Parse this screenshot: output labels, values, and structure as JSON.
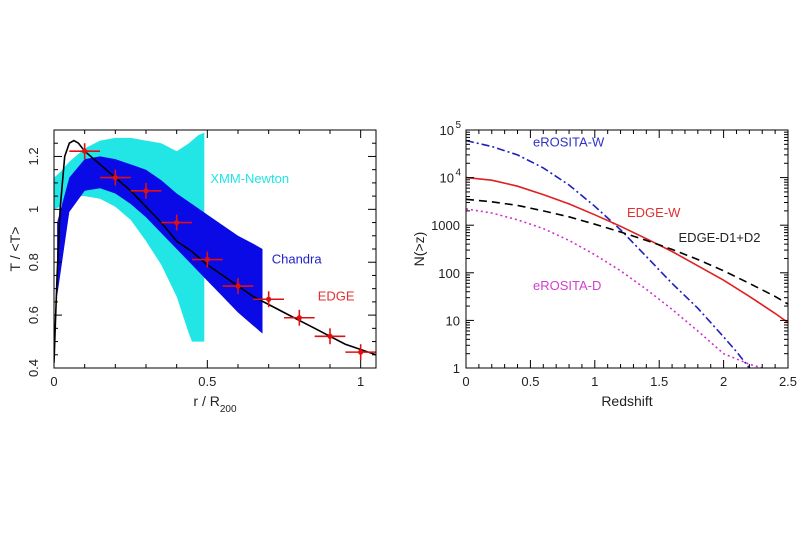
{
  "chart_data": [
    {
      "type": "scatter",
      "xlabel": "r / R",
      "xlabel_sub": "200",
      "ylabel": "T / <T>",
      "xlim": [
        0,
        1.05
      ],
      "ylim": [
        0.4,
        1.3
      ],
      "x_ticks": [
        0,
        0.5,
        1
      ],
      "y_ticks": [
        0.4,
        0.6,
        0.8,
        1,
        1.2
      ],
      "x_tick_labels": [
        "0",
        "0.5",
        "1"
      ],
      "y_tick_labels": [
        "0.4",
        "0.6",
        "0.8",
        "1",
        "1.2"
      ],
      "annotations": [
        {
          "text": "XMM-Newton",
          "color": "#22e5e5",
          "x": 0.51,
          "y": 1.1
        },
        {
          "text": "Chandra",
          "color": "#2222cc",
          "x": 0.71,
          "y": 0.795
        },
        {
          "text": "EDGE",
          "color": "#e03030",
          "x": 0.86,
          "y": 0.655
        }
      ],
      "series": [
        {
          "kind": "band",
          "color": "#22e5e5",
          "x": [
            0,
            0.02,
            0.05,
            0.1,
            0.15,
            0.2,
            0.25,
            0.3,
            0.35,
            0.4,
            0.44,
            0.45,
            0.47,
            0.49
          ],
          "upper": [
            1.12,
            1.14,
            1.18,
            1.23,
            1.26,
            1.27,
            1.27,
            1.26,
            1.25,
            1.22,
            1.25,
            1.26,
            1.28,
            1.29
          ],
          "lower": [
            1.0,
            1.01,
            1.05,
            1.05,
            1.04,
            1.01,
            0.96,
            0.88,
            0.79,
            0.67,
            0.53,
            0.5,
            0.5,
            0.5
          ]
        },
        {
          "kind": "band",
          "color": "#0a0ae6",
          "x": [
            0.01,
            0.05,
            0.1,
            0.15,
            0.2,
            0.25,
            0.3,
            0.35,
            0.4,
            0.45,
            0.5,
            0.55,
            0.6,
            0.65,
            0.68
          ],
          "upper": [
            0.95,
            1.12,
            1.19,
            1.2,
            1.19,
            1.17,
            1.15,
            1.11,
            1.06,
            1.02,
            0.98,
            0.94,
            0.9,
            0.87,
            0.85
          ],
          "lower": [
            0.67,
            0.99,
            1.07,
            1.08,
            1.06,
            1.02,
            0.97,
            0.91,
            0.85,
            0.79,
            0.73,
            0.67,
            0.61,
            0.56,
            0.53
          ]
        },
        {
          "kind": "line",
          "color": "#000000",
          "x": [
            0.0,
            0.01,
            0.02,
            0.035,
            0.05,
            0.065,
            0.08,
            0.1,
            0.15,
            0.2,
            0.25,
            0.3,
            0.35,
            0.4,
            0.45,
            0.5,
            0.55,
            0.6,
            0.65,
            0.7,
            0.75,
            0.8,
            0.85,
            0.9,
            0.95,
            1.0,
            1.05
          ],
          "y": [
            0.42,
            0.75,
            1.0,
            1.2,
            1.25,
            1.26,
            1.25,
            1.22,
            1.17,
            1.12,
            1.07,
            1.01,
            0.95,
            0.88,
            0.84,
            0.79,
            0.75,
            0.71,
            0.67,
            0.64,
            0.61,
            0.58,
            0.55,
            0.52,
            0.49,
            0.47,
            0.45
          ]
        },
        {
          "kind": "points",
          "color": "#e01010",
          "x": [
            0.1,
            0.2,
            0.3,
            0.4,
            0.5,
            0.6,
            0.7,
            0.8,
            0.9,
            1.0
          ],
          "y": [
            1.22,
            1.12,
            1.07,
            0.95,
            0.81,
            0.71,
            0.66,
            0.59,
            0.52,
            0.46
          ],
          "xerr": [
            0.05,
            0.05,
            0.05,
            0.05,
            0.05,
            0.05,
            0.05,
            0.05,
            0.05,
            0.05
          ],
          "yerr": [
            0.03,
            0.03,
            0.03,
            0.03,
            0.03,
            0.03,
            0.03,
            0.03,
            0.03,
            0.03
          ]
        }
      ]
    },
    {
      "type": "line",
      "xlabel": "Redshift",
      "ylabel": "N(>z)",
      "xlim": [
        0,
        2.5
      ],
      "ylim": [
        1,
        100000
      ],
      "y_scale": "log",
      "x_ticks": [
        0,
        0.5,
        1,
        1.5,
        2,
        2.5
      ],
      "x_tick_labels": [
        "0",
        "0.5",
        "1",
        "1.5",
        "2",
        "2.5"
      ],
      "y_ticks": [
        1,
        10,
        100,
        1000,
        10000,
        100000
      ],
      "y_tick_labels": [
        {
          "base": "1",
          "sup": ""
        },
        {
          "base": "10",
          "sup": ""
        },
        {
          "base": "100",
          "sup": ""
        },
        {
          "base": "1000",
          "sup": ""
        },
        {
          "base": "10",
          "sup": "4"
        },
        {
          "base": "10",
          "sup": "5"
        }
      ],
      "annotations": [
        {
          "text": "eROSITA-W",
          "color": "#3030c8",
          "x": 0.52,
          "y": 45000
        },
        {
          "text": "EDGE-W",
          "color": "#e03030",
          "x": 1.25,
          "y": 1500
        },
        {
          "text": "EDGE-D1+D2",
          "color": "#222222",
          "x": 1.65,
          "y": 440
        },
        {
          "text": "eROSITA-D",
          "color": "#d040d0",
          "x": 0.52,
          "y": 43
        }
      ],
      "series": [
        {
          "kind": "line",
          "color": "#2020c0",
          "dash": "8,3,2,3",
          "x": [
            0,
            0.2,
            0.4,
            0.6,
            0.8,
            1.0,
            1.2,
            1.4,
            1.6,
            1.8,
            2.0,
            2.1,
            2.2
          ],
          "y": [
            60000,
            45000,
            30000,
            16000,
            7000,
            2500,
            800,
            220,
            60,
            18,
            4.5,
            2.2,
            1
          ]
        },
        {
          "kind": "line",
          "color": "#e02020",
          "dash": "",
          "x": [
            0,
            0.2,
            0.4,
            0.6,
            0.8,
            1.0,
            1.2,
            1.4,
            1.6,
            1.8,
            2.0,
            2.2,
            2.4,
            2.5
          ],
          "y": [
            10000,
            8800,
            6600,
            4400,
            2800,
            1650,
            950,
            520,
            280,
            140,
            70,
            32,
            14,
            9
          ]
        },
        {
          "kind": "line",
          "color": "#000000",
          "dash": "8,5",
          "x": [
            0,
            0.2,
            0.4,
            0.6,
            0.8,
            1.0,
            1.2,
            1.4,
            1.6,
            1.8,
            2.0,
            2.2,
            2.4,
            2.5
          ],
          "y": [
            3500,
            3100,
            2600,
            2000,
            1500,
            1050,
            720,
            480,
            310,
            190,
            110,
            60,
            32,
            22
          ]
        },
        {
          "kind": "line",
          "color": "#d030d0",
          "dash": "2,3",
          "x": [
            0,
            0.2,
            0.4,
            0.6,
            0.8,
            1.0,
            1.2,
            1.4,
            1.6,
            1.8,
            2.0,
            2.2,
            2.3
          ],
          "y": [
            2200,
            1800,
            1300,
            850,
            480,
            240,
            110,
            45,
            17,
            6,
            2,
            1.2,
            1
          ]
        }
      ]
    }
  ]
}
